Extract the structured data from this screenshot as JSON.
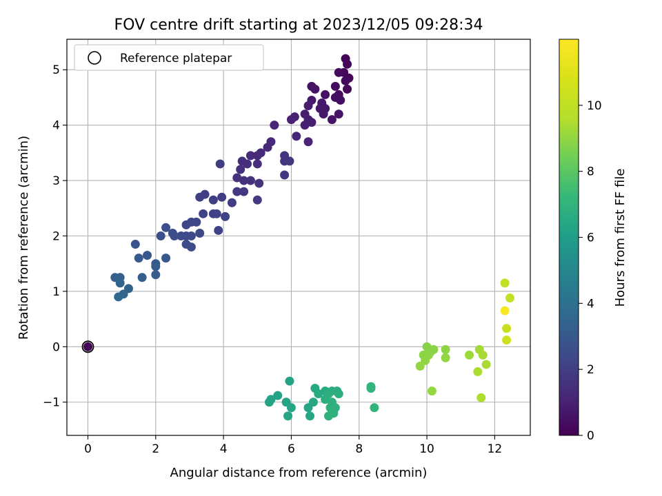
{
  "chart_data": {
    "type": "scatter",
    "title": "FOV centre drift starting at 2023/12/05 09:28:34",
    "xlabel": "Angular distance from reference (arcmin)",
    "ylabel": "Rotation from reference (arcmin)",
    "xlim": [
      -0.62,
      13.05
    ],
    "ylim": [
      -1.6,
      5.55
    ],
    "xticks": [
      0,
      2,
      4,
      6,
      8,
      10,
      12
    ],
    "yticks": [
      -1,
      0,
      1,
      2,
      3,
      4,
      5
    ],
    "grid": true,
    "legend": {
      "position": "top-left",
      "entries": [
        "Reference platepar"
      ]
    },
    "reference_point": {
      "x": 0,
      "y": 0
    },
    "colorbar": {
      "label": "Hours from first FF file",
      "range": [
        0,
        12
      ],
      "ticks": [
        0,
        2,
        4,
        6,
        8,
        10
      ],
      "colormap": "viridis"
    },
    "points": [
      [
        0,
        0,
        0.0
      ],
      [
        7.6,
        5.2,
        0.05
      ],
      [
        7.65,
        5.1,
        0.1
      ],
      [
        7.55,
        4.95,
        0.1
      ],
      [
        7.7,
        4.85,
        0.15
      ],
      [
        7.6,
        4.8,
        0.2
      ],
      [
        7.65,
        4.65,
        0.2
      ],
      [
        7.4,
        4.95,
        0.3
      ],
      [
        7.3,
        4.7,
        0.3
      ],
      [
        7.4,
        4.55,
        0.35
      ],
      [
        7.3,
        4.5,
        0.4
      ],
      [
        7.45,
        4.45,
        0.4
      ],
      [
        7.0,
        4.55,
        0.5
      ],
      [
        6.6,
        4.7,
        0.5
      ],
      [
        6.7,
        4.65,
        0.55
      ],
      [
        7.4,
        4.2,
        0.6
      ],
      [
        7.2,
        4.1,
        0.6
      ],
      [
        7.0,
        4.3,
        0.65
      ],
      [
        6.9,
        4.4,
        0.7
      ],
      [
        6.85,
        4.3,
        0.7
      ],
      [
        6.95,
        4.2,
        0.75
      ],
      [
        6.6,
        4.45,
        0.8
      ],
      [
        6.5,
        4.35,
        0.85
      ],
      [
        6.4,
        4.2,
        0.9
      ],
      [
        6.5,
        4.1,
        0.9
      ],
      [
        6.6,
        4.05,
        0.95
      ],
      [
        6.4,
        4.0,
        1.0
      ],
      [
        6.1,
        4.15,
        1.0
      ],
      [
        6.0,
        4.1,
        1.05
      ],
      [
        5.5,
        4.0,
        1.1
      ],
      [
        6.5,
        3.7,
        1.1
      ],
      [
        6.15,
        3.8,
        1.15
      ],
      [
        5.4,
        3.7,
        1.2
      ],
      [
        5.3,
        3.6,
        1.25
      ],
      [
        5.1,
        3.5,
        1.3
      ],
      [
        5.0,
        3.45,
        1.3
      ],
      [
        4.8,
        3.45,
        1.35
      ],
      [
        5.0,
        3.3,
        1.4
      ],
      [
        4.7,
        3.3,
        1.4
      ],
      [
        4.55,
        3.35,
        1.45
      ],
      [
        4.5,
        3.2,
        1.5
      ],
      [
        4.4,
        3.05,
        1.5
      ],
      [
        4.6,
        3.0,
        1.55
      ],
      [
        4.8,
        3.0,
        1.6
      ],
      [
        5.05,
        2.95,
        1.6
      ],
      [
        5.8,
        3.45,
        1.6
      ],
      [
        5.8,
        3.35,
        1.65
      ],
      [
        5.95,
        3.35,
        1.7
      ],
      [
        5.8,
        3.1,
        1.75
      ],
      [
        4.4,
        2.8,
        1.8
      ],
      [
        4.6,
        2.8,
        1.8
      ],
      [
        5.0,
        2.65,
        1.85
      ],
      [
        3.9,
        3.3,
        1.9
      ],
      [
        4.25,
        2.6,
        1.9
      ],
      [
        3.95,
        2.7,
        1.95
      ],
      [
        3.7,
        2.65,
        2.0
      ],
      [
        3.45,
        2.75,
        2.0
      ],
      [
        3.3,
        2.7,
        2.05
      ],
      [
        3.8,
        2.4,
        2.1
      ],
      [
        3.7,
        2.4,
        2.1
      ],
      [
        4.05,
        2.35,
        2.15
      ],
      [
        3.4,
        2.4,
        2.2
      ],
      [
        3.85,
        2.1,
        2.2
      ],
      [
        3.2,
        2.25,
        2.25
      ],
      [
        3.05,
        2.25,
        2.3
      ],
      [
        2.9,
        2.2,
        2.3
      ],
      [
        3.3,
        2.05,
        2.35
      ],
      [
        3.05,
        2.0,
        2.4
      ],
      [
        2.9,
        2.0,
        2.4
      ],
      [
        2.75,
        2.0,
        2.45
      ],
      [
        2.9,
        1.85,
        2.5
      ],
      [
        3.05,
        1.8,
        2.5
      ],
      [
        2.5,
        2.05,
        2.55
      ],
      [
        2.55,
        2.0,
        2.6
      ],
      [
        2.3,
        2.15,
        2.6
      ],
      [
        2.15,
        2.0,
        2.65
      ],
      [
        1.4,
        1.85,
        2.8
      ],
      [
        1.75,
        1.65,
        2.9
      ],
      [
        2.3,
        1.6,
        3.0
      ],
      [
        1.5,
        1.6,
        3.0
      ],
      [
        2.0,
        1.5,
        3.05
      ],
      [
        2.0,
        1.45,
        3.1
      ],
      [
        2.0,
        1.3,
        3.15
      ],
      [
        1.6,
        1.25,
        3.2
      ],
      [
        0.95,
        1.25,
        3.3
      ],
      [
        0.8,
        1.25,
        3.35
      ],
      [
        1.2,
        1.05,
        3.4
      ],
      [
        0.95,
        1.15,
        3.45
      ],
      [
        1.05,
        0.95,
        3.5
      ],
      [
        0.9,
        0.9,
        3.55
      ],
      [
        5.95,
        -0.62,
        6.2
      ],
      [
        5.6,
        -0.88,
        6.25
      ],
      [
        5.4,
        -0.95,
        6.3
      ],
      [
        5.35,
        -1.0,
        6.3
      ],
      [
        5.85,
        -1.0,
        6.35
      ],
      [
        6.0,
        -1.1,
        6.35
      ],
      [
        5.9,
        -1.25,
        6.4
      ],
      [
        6.5,
        -1.1,
        6.4
      ],
      [
        6.55,
        -1.25,
        6.45
      ],
      [
        6.7,
        -0.75,
        6.5
      ],
      [
        6.65,
        -1.0,
        6.5
      ],
      [
        6.8,
        -0.85,
        6.6
      ],
      [
        7.0,
        -0.8,
        6.6
      ],
      [
        7.2,
        -0.8,
        6.65
      ],
      [
        7.35,
        -0.8,
        6.7
      ],
      [
        7.4,
        -0.85,
        6.7
      ],
      [
        7.1,
        -0.85,
        6.75
      ],
      [
        7.0,
        -0.95,
        6.75
      ],
      [
        7.2,
        -1.0,
        6.8
      ],
      [
        7.15,
        -1.1,
        6.8
      ],
      [
        7.3,
        -1.1,
        6.85
      ],
      [
        7.1,
        -1.25,
        6.85
      ],
      [
        7.25,
        -1.2,
        6.9
      ],
      [
        8.35,
        -0.75,
        7.0
      ],
      [
        8.35,
        -0.72,
        7.05
      ],
      [
        8.45,
        -1.1,
        7.1
      ],
      [
        10.0,
        0.0,
        8.8
      ],
      [
        10.2,
        -0.05,
        8.85
      ],
      [
        10.1,
        -0.1,
        8.85
      ],
      [
        9.9,
        -0.15,
        8.9
      ],
      [
        10.05,
        -0.15,
        8.9
      ],
      [
        9.95,
        -0.25,
        8.95
      ],
      [
        10.55,
        -0.05,
        8.95
      ],
      [
        10.55,
        -0.2,
        9.0
      ],
      [
        9.8,
        -0.35,
        9.0
      ],
      [
        10.15,
        -0.8,
        9.05
      ],
      [
        11.25,
        -0.15,
        9.2
      ],
      [
        11.55,
        -0.05,
        9.3
      ],
      [
        11.65,
        -0.15,
        9.35
      ],
      [
        11.75,
        -0.32,
        9.4
      ],
      [
        11.5,
        -0.45,
        9.45
      ],
      [
        11.6,
        -0.92,
        9.5
      ],
      [
        12.3,
        1.15,
        10.0
      ],
      [
        12.45,
        0.88,
        10.1
      ],
      [
        12.35,
        0.33,
        10.3
      ],
      [
        12.35,
        0.12,
        10.5
      ],
      [
        12.3,
        0.65,
        11.9
      ]
    ]
  }
}
